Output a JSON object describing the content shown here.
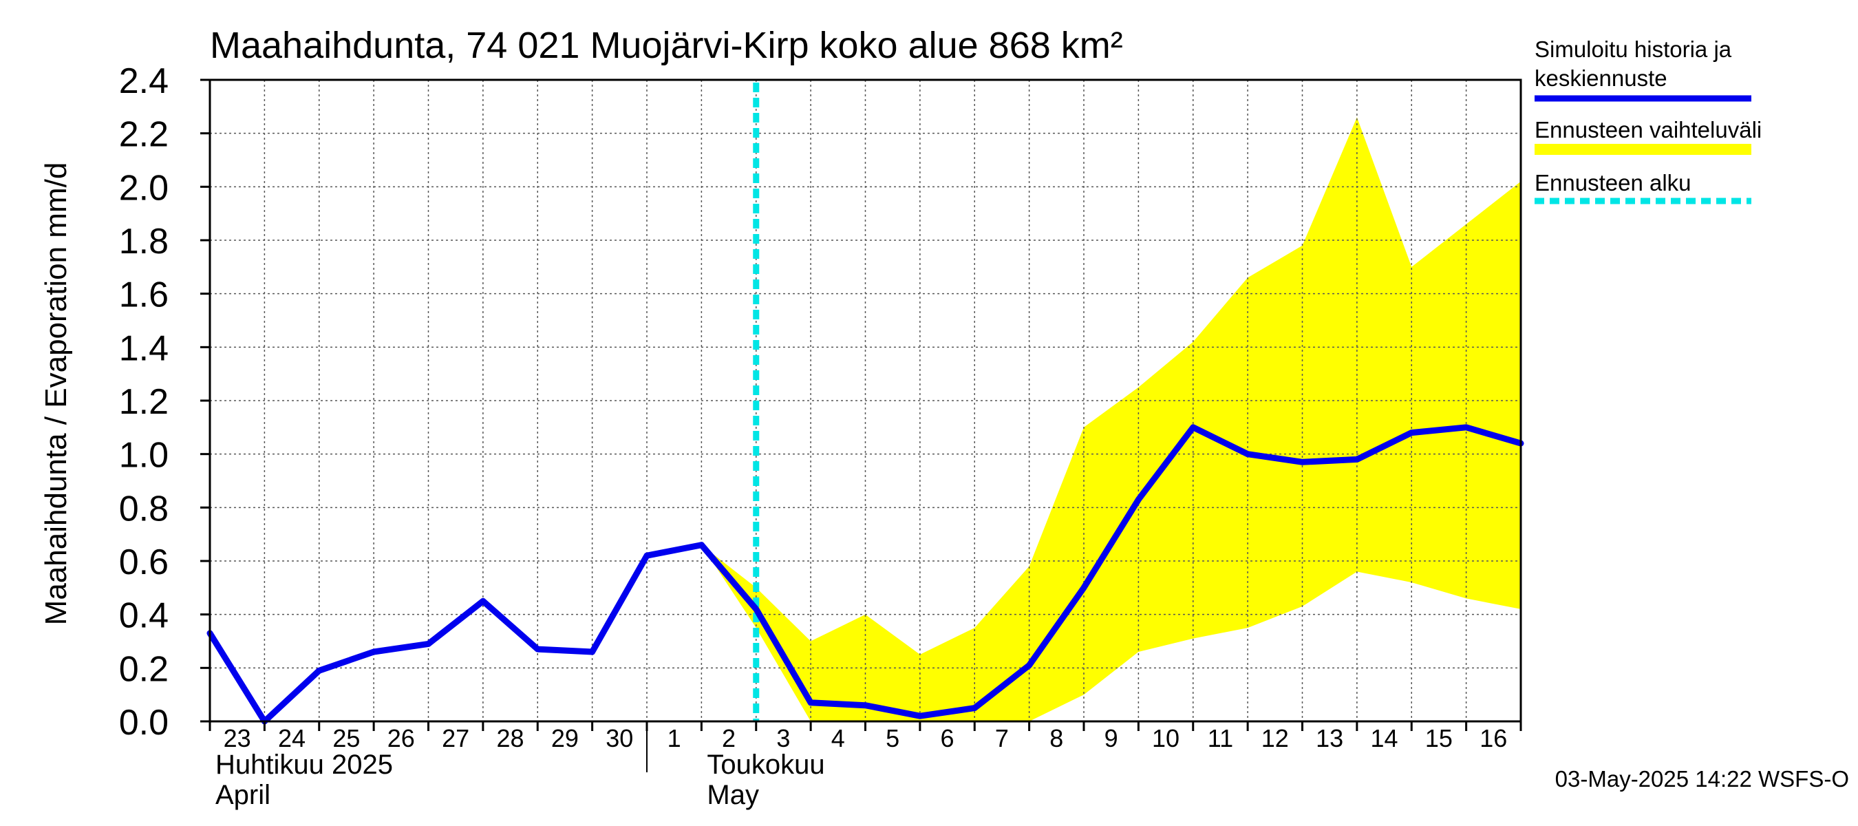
{
  "chart_data": {
    "type": "line",
    "title": "Maahaihdunta, 74 021 Muojärvi-Kirp koko alue 868 km²",
    "ylabel": "Maahaihdunta / Evaporation   mm/d",
    "ylim": [
      0,
      2.4
    ],
    "yticks": [
      "0.0",
      "0.2",
      "0.4",
      "0.6",
      "0.8",
      "1.0",
      "1.2",
      "1.4",
      "1.6",
      "1.8",
      "2.0",
      "2.2",
      "2.4"
    ],
    "xlim": [
      "2025-04-23",
      "2025-05-17"
    ],
    "x_day_labels": [
      "23",
      "24",
      "25",
      "26",
      "27",
      "28",
      "29",
      "30",
      "1",
      "2",
      "3",
      "4",
      "5",
      "6",
      "7",
      "8",
      "9",
      "10",
      "11",
      "12",
      "13",
      "14",
      "15",
      "16"
    ],
    "month_labels": [
      {
        "fi": "Huhtikuu  2025",
        "en": "April"
      },
      {
        "fi": "Toukokuu",
        "en": "May"
      }
    ],
    "grid": true,
    "forecast_start": "2025-05-03 00:00",
    "series": [
      {
        "name": "Simuloitu historia ja keskiennuste",
        "color": "#0000ee",
        "x": [
          "2025-04-23",
          "2025-04-24",
          "2025-04-25",
          "2025-04-26",
          "2025-04-27",
          "2025-04-28",
          "2025-04-29",
          "2025-04-30",
          "2025-05-01",
          "2025-05-02",
          "2025-05-03",
          "2025-05-04",
          "2025-05-05",
          "2025-05-06",
          "2025-05-07",
          "2025-05-08",
          "2025-05-09",
          "2025-05-10",
          "2025-05-11",
          "2025-05-12",
          "2025-05-13",
          "2025-05-14",
          "2025-05-15",
          "2025-05-16",
          "2025-05-17"
        ],
        "values": [
          0.33,
          0.0,
          0.19,
          0.26,
          0.29,
          0.45,
          0.27,
          0.26,
          0.62,
          0.66,
          0.42,
          0.07,
          0.06,
          0.02,
          0.05,
          0.21,
          0.5,
          0.83,
          1.1,
          1.0,
          0.97,
          0.98,
          1.08,
          1.1,
          1.04
        ]
      },
      {
        "name": "Ennusteen vaihteluväli",
        "color": "#ffff00",
        "x": [
          "2025-05-02",
          "2025-05-03",
          "2025-05-04",
          "2025-05-05",
          "2025-05-06",
          "2025-05-07",
          "2025-05-08",
          "2025-05-09",
          "2025-05-10",
          "2025-05-11",
          "2025-05-12",
          "2025-05-13",
          "2025-05-14",
          "2025-05-15",
          "2025-05-16",
          "2025-05-17"
        ],
        "upper": [
          0.66,
          0.5,
          0.3,
          0.4,
          0.25,
          0.35,
          0.58,
          1.1,
          1.25,
          1.42,
          1.66,
          1.78,
          2.26,
          1.7,
          1.86,
          2.02
        ],
        "lower": [
          0.66,
          0.35,
          0.0,
          0.0,
          0.0,
          0.0,
          0.0,
          0.1,
          0.26,
          0.31,
          0.35,
          0.43,
          0.56,
          0.52,
          0.46,
          0.42
        ]
      }
    ],
    "legend": {
      "placement": "right",
      "items": [
        {
          "label_lines": [
            "Simuloitu historia ja",
            "keskiennuste"
          ],
          "style": "solid",
          "color": "#0000ee"
        },
        {
          "label_lines": [
            "Ennusteen vaihteluväli"
          ],
          "style": "band",
          "color": "#ffff00"
        },
        {
          "label_lines": [
            "Ennusteen alku"
          ],
          "style": "dashed",
          "color": "#00e5e5"
        }
      ]
    },
    "footer": "03-May-2025 14:22 WSFS-O"
  }
}
